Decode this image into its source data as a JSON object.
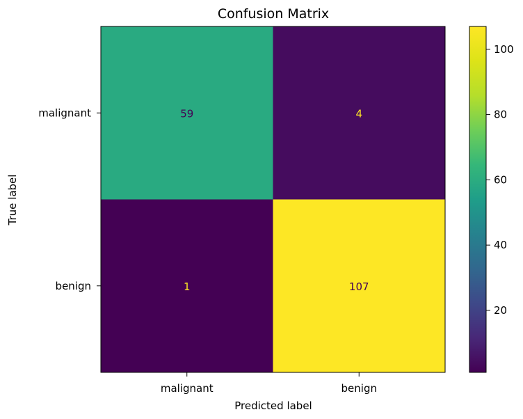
{
  "chart_data": {
    "type": "heatmap",
    "title": "Confusion Matrix",
    "xlabel": "Predicted label",
    "ylabel": "True label",
    "x_categories": [
      "malignant",
      "benign"
    ],
    "y_categories": [
      "malignant",
      "benign"
    ],
    "values": [
      [
        59,
        4
      ],
      [
        1,
        107
      ]
    ],
    "colormap": "viridis",
    "colorbar": {
      "min": 1,
      "max": 107,
      "ticks": [
        20,
        40,
        60,
        80,
        100
      ]
    },
    "colors": {
      "low": "#440154",
      "high": "#fde725",
      "text_on_dark": "#fde725",
      "text_on_light": "#440154"
    }
  }
}
